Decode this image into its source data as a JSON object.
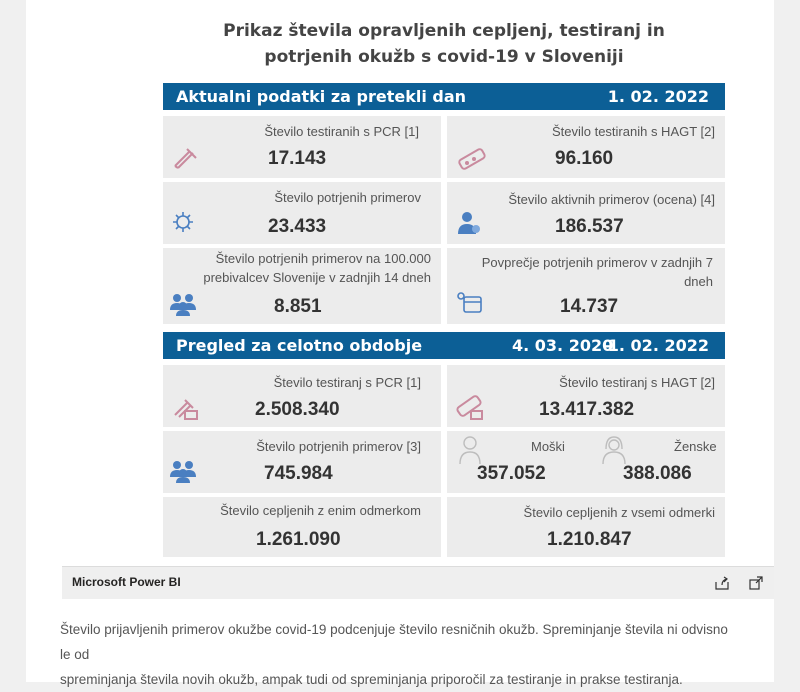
{
  "report": {
    "title_line1": "Prikaz števila opravljenih cepljenj, testiranj in",
    "title_line2": "potrjenih okužb s covid-19 v Sloveniji"
  },
  "daily": {
    "label": "Aktualni podatki za pretekli dan",
    "date": "1. 02. 2022",
    "cards": [
      {
        "label": "Število testiranih s PCR [1]",
        "value": "17.143",
        "icon": "pcr-tube-icon"
      },
      {
        "label": "Število testiranih s HAGT [2]",
        "value": "96.160",
        "icon": "rapid-test-icon"
      },
      {
        "label": "Število potrjenih primerov",
        "value": "23.433",
        "icon": "virus-icon"
      },
      {
        "label": "Število aktivnih primerov (ocena) [4]",
        "value": "186.537",
        "icon": "person-icon"
      },
      {
        "label_line1": "Število potrjenih primerov na 100.000",
        "label_line2": "prebivalcev Slovenije v zadnjih 14 dneh",
        "value": "8.851",
        "icon": "group-icon"
      },
      {
        "label_line1": "Povprečje potrjenih primerov v zadnjih 7",
        "label_line2": "dneh",
        "value": "14.737",
        "icon": "calendar-virus-icon"
      }
    ]
  },
  "total": {
    "label": "Pregled za celotno obdobje",
    "date_from": "4. 03. 2020",
    "dash": "-",
    "date_to": "1. 02. 2022",
    "cards": [
      {
        "label": "Število testiranj s PCR [1]",
        "value": "2.508.340",
        "icon": "pcr-tube-icon"
      },
      {
        "label": "Število testiranj s HAGT [2]",
        "value": "13.417.382",
        "icon": "rapid-test-icon"
      },
      {
        "label": "Število potrjenih primerov [3]",
        "value": "745.984",
        "icon": "group-icon"
      },
      {
        "male_label": "Moški",
        "male_value": "357.052",
        "female_label": "Ženske",
        "female_value": "388.086"
      },
      {
        "label": "Število cepljenih z enim odmerkom",
        "value": "1.261.090"
      },
      {
        "label": "Število cepljenih z vsemi odmerki",
        "value": "1.210.847"
      }
    ]
  },
  "powerbi": {
    "brand": "Microsoft Power BI",
    "share_icon": "share-icon",
    "fullscreen_icon": "fullscreen-icon"
  },
  "footer": {
    "line1": "Število prijavljenih primerov okužbe covid-19 podcenjuje število resničnih okužb. Spreminjanje števila ni odvisno le od",
    "line2": "spreminjanja števila novih okužb, ampak tudi od spreminjanja priporočil za testiranje in prakse testiranja."
  },
  "colors": {
    "band": "#0c5f96",
    "icon_pink": "#c98a9e",
    "icon_blue": "#4a7fc1"
  }
}
